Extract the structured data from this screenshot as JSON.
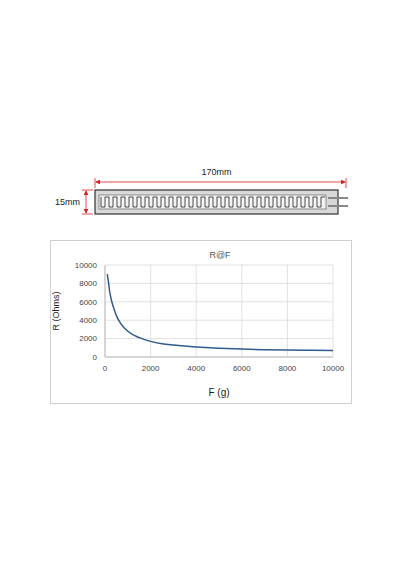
{
  "diagram": {
    "length_label": "170mm",
    "width_label": "15mm"
  },
  "chart_data": {
    "type": "line",
    "title": "R@F",
    "x_label": "F (g)",
    "y_label": "R (Ohms)",
    "x": [
      100,
      150,
      200,
      300,
      400,
      500,
      700,
      1000,
      1500,
      2000,
      2500,
      3000,
      4000,
      5000,
      6000,
      7000,
      8000,
      9000,
      10000
    ],
    "series": [
      {
        "name": "R",
        "color": "#2e5b8c",
        "values": [
          9000,
          8200,
          7200,
          6000,
          5200,
          4500,
          3600,
          2800,
          2100,
          1700,
          1450,
          1300,
          1080,
          950,
          860,
          800,
          760,
          730,
          700
        ]
      }
    ],
    "xlim": [
      0,
      10000
    ],
    "xticks": [
      0,
      2000,
      4000,
      6000,
      8000,
      10000
    ],
    "ylim": [
      0,
      10000
    ],
    "yticks": [
      0,
      2000,
      4000,
      6000,
      8000,
      10000
    ],
    "grid": true
  }
}
